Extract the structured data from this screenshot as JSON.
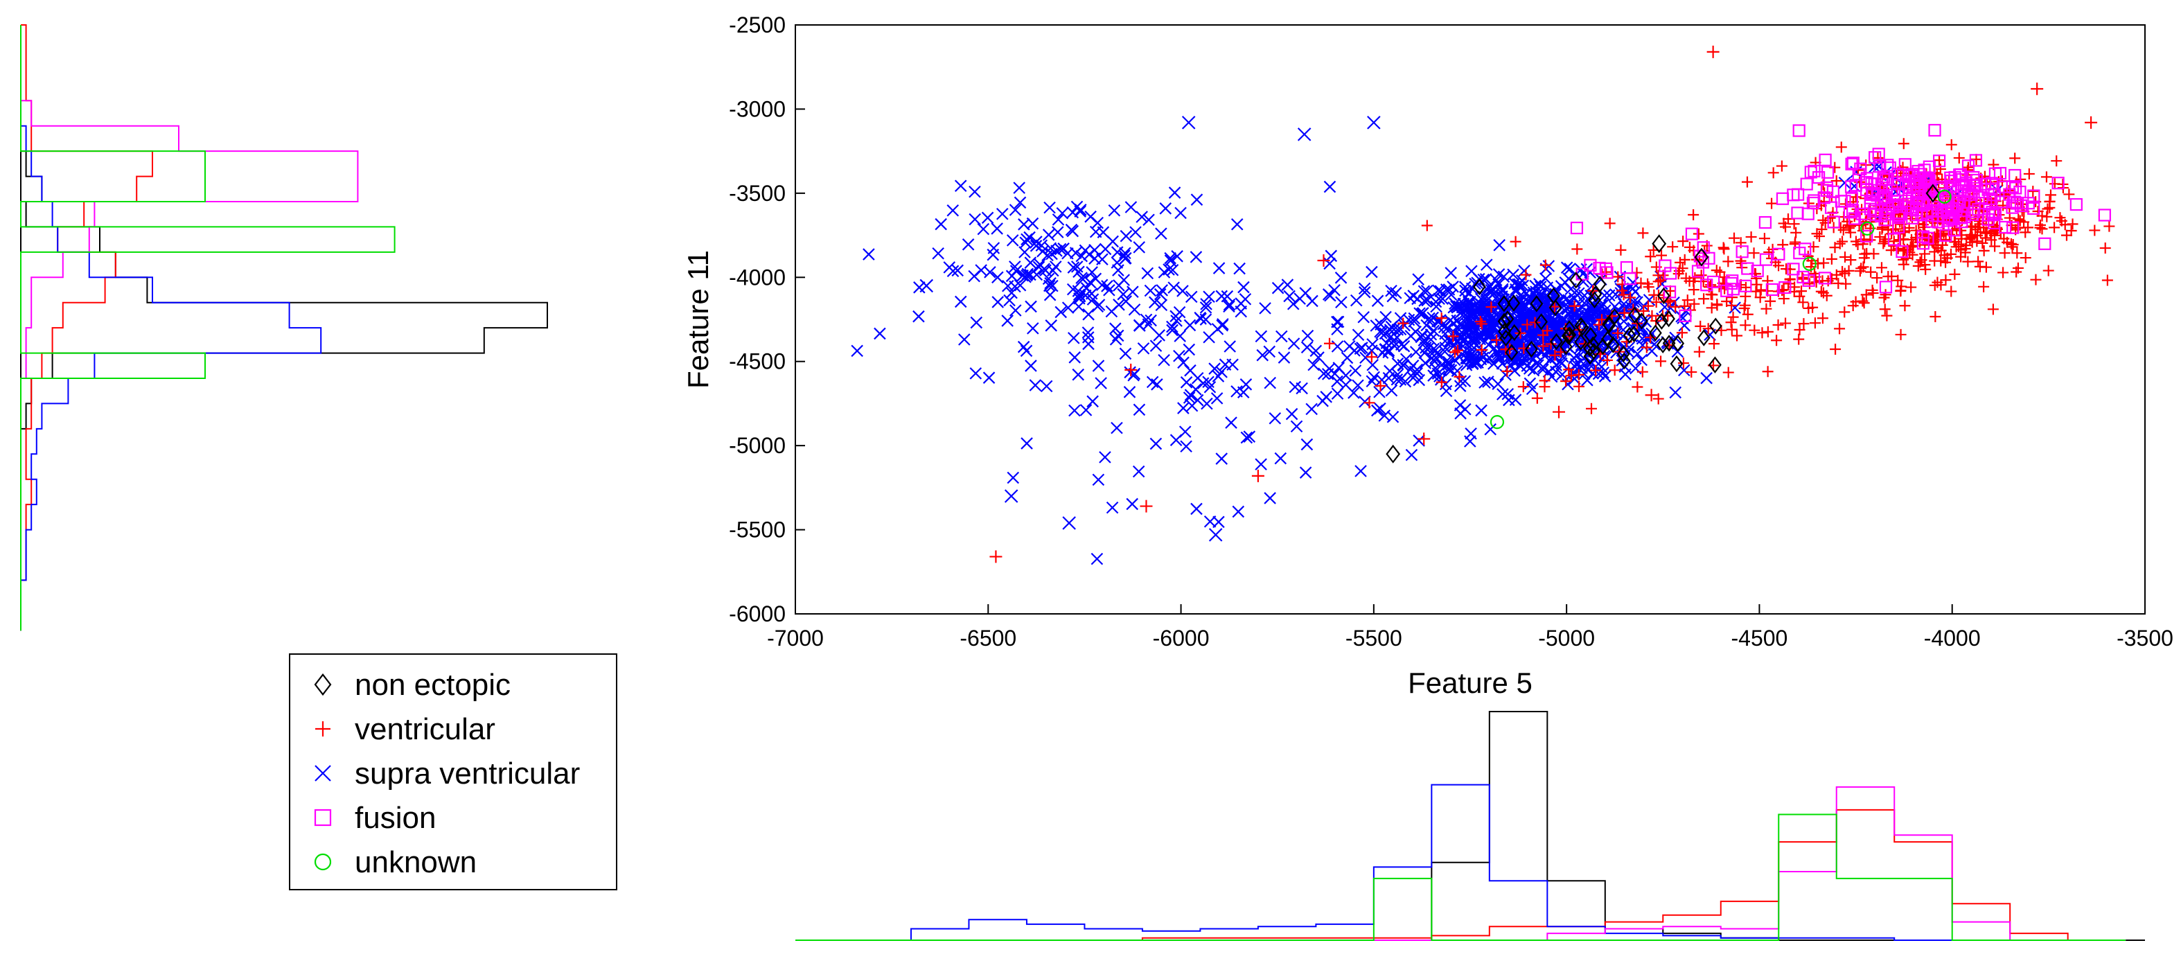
{
  "chart_data": {
    "type": "scatter",
    "xlabel": "Feature 5",
    "ylabel": "Feature 11",
    "xlim": [
      -7000,
      -3500
    ],
    "ylim": [
      -6000,
      -2500
    ],
    "xticks": [
      -7000,
      -6500,
      -6000,
      -5500,
      -5000,
      -4500,
      -4000,
      -3500
    ],
    "yticks": [
      -2500,
      -3000,
      -3500,
      -4000,
      -4500,
      -5000,
      -5500,
      -6000
    ],
    "grid": false,
    "legend_position": "bottom-left",
    "legend": [
      {
        "name": "non ectopic",
        "marker": "diamond",
        "color": "#000000"
      },
      {
        "name": "ventricular",
        "marker": "plus",
        "color": "#ff0000"
      },
      {
        "name": "supra ventricular",
        "marker": "x",
        "color": "#0000ff"
      },
      {
        "name": "fusion",
        "marker": "square",
        "color": "#ff00ff"
      },
      {
        "name": "unknown",
        "marker": "circle",
        "color": "#00dd00"
      }
    ],
    "series": [
      {
        "name": "supra ventricular",
        "marker": "x",
        "color": "#0000ff",
        "clusters": [
          {
            "center": [
              -5100,
              -4300
            ],
            "spread": [
              170,
              150
            ],
            "count": 900
          },
          {
            "center": [
              -6300,
              -3950
            ],
            "spread": [
              170,
              220
            ],
            "count": 170
          },
          {
            "center": [
              -5900,
              -4500
            ],
            "spread": [
              250,
              400
            ],
            "count": 170
          },
          {
            "center": [
              -5450,
              -4550
            ],
            "spread": [
              180,
              170
            ],
            "count": 70
          },
          {
            "center": [
              -4150,
              -3450
            ],
            "spread": [
              90,
              80
            ],
            "count": 20
          }
        ],
        "points": [
          [
            -6660,
            -4050
          ],
          [
            -6440,
            -5300
          ],
          [
            -6290,
            -5460
          ],
          [
            -5910,
            -5530
          ],
          [
            -5980,
            -3080
          ],
          [
            -5500,
            -3080
          ],
          [
            -5680,
            -3150
          ],
          [
            -5200,
            -4050
          ]
        ]
      },
      {
        "name": "ventricular",
        "marker": "plus",
        "color": "#ff0000",
        "clusters": [
          {
            "center": [
              -4050,
              -3650
            ],
            "spread": [
              160,
              170
            ],
            "count": 470
          },
          {
            "center": [
              -4550,
              -4050
            ],
            "spread": [
              240,
              170
            ],
            "count": 220
          },
          {
            "center": [
              -5050,
              -4450
            ],
            "spread": [
              230,
              180
            ],
            "count": 60
          }
        ],
        "points": [
          [
            -4620,
            -2660
          ],
          [
            -6480,
            -5660
          ],
          [
            -5630,
            -3900
          ],
          [
            -6130,
            -4550
          ],
          [
            -5800,
            -5180
          ],
          [
            -5020,
            -4800
          ],
          [
            -5370,
            -4960
          ],
          [
            -3640,
            -3080
          ],
          [
            -3780,
            -2880
          ],
          [
            -4780,
            -4700
          ],
          [
            -6090,
            -5360
          ]
        ]
      },
      {
        "name": "fusion",
        "marker": "square",
        "color": "#ff00ff",
        "clusters": [
          {
            "center": [
              -4100,
              -3520
            ],
            "spread": [
              150,
              110
            ],
            "count": 230
          },
          {
            "center": [
              -4600,
              -3960
            ],
            "spread": [
              180,
              120
            ],
            "count": 40
          }
        ],
        "points": []
      },
      {
        "name": "non ectopic",
        "marker": "diamond",
        "color": "#000000",
        "clusters": [
          {
            "center": [
              -4950,
              -4300
            ],
            "spread": [
              140,
              130
            ],
            "count": 55
          }
        ],
        "points": [
          [
            -5450,
            -5050
          ],
          [
            -4760,
            -3800
          ],
          [
            -4650,
            -3880
          ],
          [
            -4050,
            -3500
          ]
        ]
      },
      {
        "name": "unknown",
        "marker": "circle",
        "color": "#00dd00",
        "clusters": [],
        "points": [
          [
            -5180,
            -4860
          ],
          [
            -4020,
            -3520
          ],
          [
            -4370,
            -3920
          ],
          [
            -4220,
            -3710
          ]
        ]
      }
    ],
    "x_histogram": {
      "bin_edges": [
        -7000,
        -6850,
        -6700,
        -6550,
        -6400,
        -6250,
        -6100,
        -5950,
        -5800,
        -5650,
        -5500,
        -5350,
        -5200,
        -5050,
        -4900,
        -4750,
        -4600,
        -4450,
        -4300,
        -4150,
        -4000,
        -3850,
        -3700,
        -3550
      ],
      "series": [
        {
          "name": "non ectopic",
          "color": "#000000",
          "values": [
            0,
            0,
            0,
            0,
            0,
            0,
            0,
            0,
            0,
            0,
            0,
            0.34,
            1.0,
            0.26,
            0.05,
            0.03,
            0.01,
            0,
            0,
            0,
            0,
            0,
            0
          ]
        },
        {
          "name": "ventricular",
          "color": "#ff0000",
          "values": [
            0,
            0,
            0,
            0,
            0,
            0,
            0.01,
            0.01,
            0.01,
            0.01,
            0.01,
            0.02,
            0.06,
            0.06,
            0.08,
            0.11,
            0.17,
            0.43,
            0.57,
            0.43,
            0.16,
            0.03,
            0
          ]
        },
        {
          "name": "supra ventricular",
          "color": "#0000ff",
          "values": [
            0,
            0,
            0.05,
            0.09,
            0.07,
            0.05,
            0.04,
            0.05,
            0.06,
            0.07,
            0.32,
            0.68,
            0.26,
            0.06,
            0.03,
            0.02,
            0.01,
            0.01,
            0.01,
            0,
            0,
            0,
            0
          ]
        },
        {
          "name": "fusion",
          "color": "#ff00ff",
          "values": [
            0,
            0,
            0,
            0,
            0,
            0,
            0,
            0,
            0,
            0,
            0,
            0,
            0,
            0.03,
            0.05,
            0.06,
            0.05,
            0.3,
            0.67,
            0.46,
            0.08,
            0,
            0
          ]
        },
        {
          "name": "unknown",
          "color": "#00dd00",
          "values": [
            0,
            0,
            0,
            0,
            0,
            0,
            0,
            0,
            0,
            0,
            0.27,
            0,
            0,
            0,
            0,
            0,
            0,
            0.55,
            0.27,
            0.27,
            0,
            0,
            0
          ]
        }
      ]
    },
    "y_histogram": {
      "bin_edges": [
        -2500,
        -2650,
        -2800,
        -2950,
        -3100,
        -3250,
        -3400,
        -3550,
        -3700,
        -3850,
        -4000,
        -4150,
        -4300,
        -4450,
        -4600,
        -4750,
        -4900,
        -5050,
        -5200,
        -5350,
        -5500,
        -5650,
        -5800,
        -5950,
        -6100
      ],
      "series": [
        {
          "name": "non ectopic",
          "color": "#000000",
          "values": [
            0,
            0,
            0,
            0,
            0,
            0.01,
            0.04,
            0.01,
            0.15,
            0.18,
            0.24,
            1.0,
            0.88,
            0.06,
            0.02,
            0.01,
            0,
            0,
            0,
            0,
            0,
            0,
            0,
            0
          ]
        },
        {
          "name": "ventricular",
          "color": "#ff0000",
          "values": [
            0.01,
            0.01,
            0.01,
            0.02,
            0.02,
            0.25,
            0.22,
            0.12,
            0.07,
            0.18,
            0.16,
            0.08,
            0.06,
            0.04,
            0.02,
            0.02,
            0.01,
            0.01,
            0.02,
            0.01,
            0.01,
            0.01,
            0,
            0
          ]
        },
        {
          "name": "supra ventricular",
          "color": "#0000ff",
          "values": [
            0,
            0,
            0,
            0,
            0.01,
            0.02,
            0.04,
            0.06,
            0.07,
            0.13,
            0.25,
            0.51,
            0.57,
            0.14,
            0.09,
            0.04,
            0.03,
            0.02,
            0.03,
            0.02,
            0.01,
            0.01,
            0,
            0
          ]
        },
        {
          "name": "fusion",
          "color": "#ff00ff",
          "values": [
            0,
            0,
            0,
            0.02,
            0.3,
            0.64,
            0.64,
            0.14,
            0.13,
            0.08,
            0.02,
            0.02,
            0.01,
            0.01,
            0,
            0,
            0,
            0,
            0,
            0,
            0,
            0,
            0,
            0
          ]
        },
        {
          "name": "unknown",
          "color": "#00dd00",
          "values": [
            0,
            0,
            0,
            0,
            0,
            0.35,
            0.35,
            0,
            0.71,
            0,
            0,
            0,
            0,
            0.35,
            0,
            0,
            0,
            0,
            0,
            0,
            0,
            0,
            0,
            0
          ]
        }
      ]
    }
  }
}
